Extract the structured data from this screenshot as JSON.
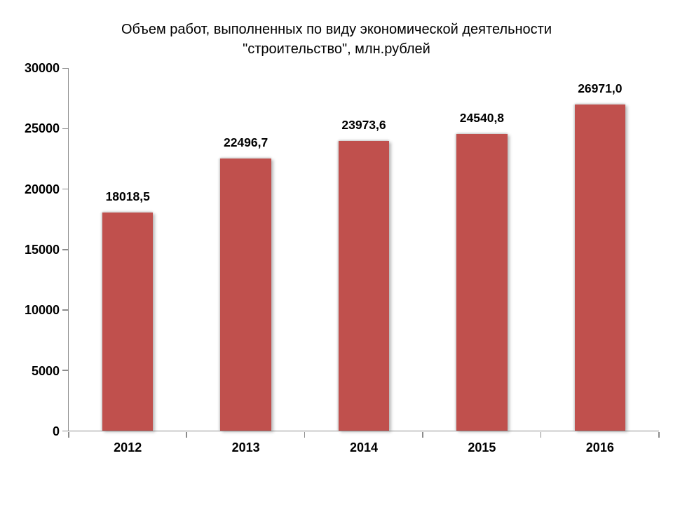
{
  "title": {
    "line1": "Объем работ, выполненных по виду экономической деятельности",
    "line2": "\"строительство\", млн.рублей"
  },
  "chart_data": {
    "type": "bar",
    "title": "Объем работ, выполненных по виду экономической деятельности \"строительство\", млн.рублей",
    "categories": [
      "2012",
      "2013",
      "2014",
      "2015",
      "2016"
    ],
    "values": [
      18018.5,
      22496.7,
      23973.6,
      24540.8,
      26971.0
    ],
    "value_labels": [
      "18018,5",
      "22496,7",
      "23973,6",
      "24540,8",
      "26971,0"
    ],
    "xlabel": "",
    "ylabel": "",
    "ylim": [
      0,
      30000
    ],
    "yticks": [
      0,
      5000,
      10000,
      15000,
      20000,
      25000,
      30000
    ],
    "ytick_labels": [
      "0",
      "5000",
      "10000",
      "15000",
      "20000",
      "25000",
      "30000"
    ],
    "grid": false,
    "legend_position": "none",
    "bar_color": "#c0504d",
    "axis_color": "#8c8c8c",
    "text_color": "#000000"
  }
}
